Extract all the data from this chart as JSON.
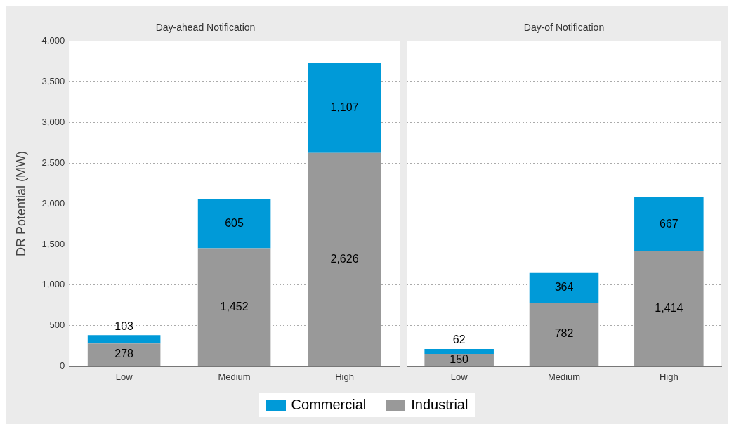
{
  "chart_data": [
    {
      "type": "bar",
      "title": "Day-ahead Notification",
      "ylabel": "DR Potential (MW)",
      "categories": [
        "Low",
        "Medium",
        "High"
      ],
      "stacked": true,
      "series": [
        {
          "name": "Industrial",
          "color": "#999999",
          "values": [
            278,
            1452,
            2626
          ],
          "value_labels": [
            "278",
            "1,452",
            "2,626"
          ]
        },
        {
          "name": "Commercial",
          "color": "#009ad8",
          "values": [
            103,
            605,
            1107
          ],
          "value_labels": [
            "103",
            "605",
            "1,107"
          ]
        }
      ],
      "ylim": [
        0,
        4000
      ],
      "yticks": [
        {
          "value": 0,
          "label": "0"
        },
        {
          "value": 500,
          "label": "500"
        },
        {
          "value": 1000,
          "label": "1,000"
        },
        {
          "value": 1500,
          "label": "1,500"
        },
        {
          "value": 2000,
          "label": "2,000"
        },
        {
          "value": 2500,
          "label": "2,500"
        },
        {
          "value": 3000,
          "label": "3,000"
        },
        {
          "value": 3500,
          "label": "3,500"
        },
        {
          "value": 4000,
          "label": "4,000"
        }
      ],
      "grid": "y",
      "legend": "bottom"
    },
    {
      "type": "bar",
      "title": "Day-of Notification",
      "categories": [
        "Low",
        "Medium",
        "High"
      ],
      "stacked": true,
      "series": [
        {
          "color": "#999999",
          "values": [
            150,
            782,
            1414
          ],
          "value_labels": [
            "150",
            "782",
            "1,414"
          ]
        },
        {
          "color": "#009ad8",
          "values": [
            62,
            364,
            667
          ],
          "value_labels": [
            "62",
            "364",
            "667"
          ]
        }
      ],
      "ylim": [
        0,
        4000
      ],
      "yticks": [
        0,
        500,
        1000,
        1500,
        2000,
        2500,
        3000,
        3500,
        4000
      ],
      "grid": "y",
      "tick_labels": "x"
    }
  ]
}
